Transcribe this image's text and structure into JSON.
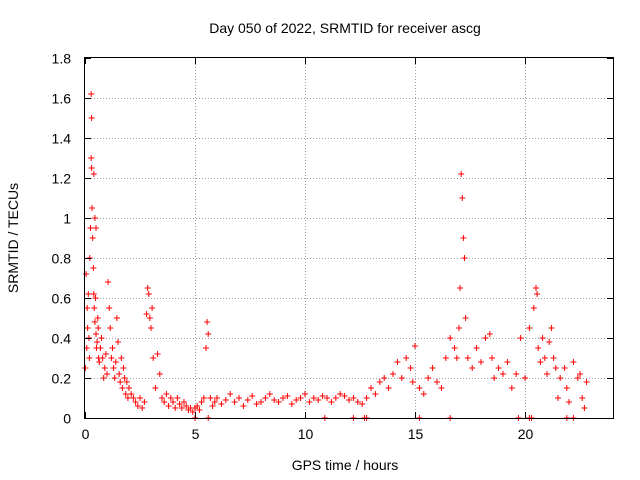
{
  "chart_data": {
    "type": "scatter",
    "title": "Day 050 of 2022, SRMTID for receiver ascg",
    "xlabel": "GPS time / hours",
    "ylabel": "SRMTID / TECUs",
    "xlim": [
      0,
      24
    ],
    "ylim": [
      0,
      1.8
    ],
    "xticks": [
      0,
      5,
      10,
      15,
      20
    ],
    "xtick_labels": [
      "0",
      "5",
      "10",
      "15",
      "20"
    ],
    "yticks": [
      0,
      0.2,
      0.4,
      0.6,
      0.8,
      1,
      1.2,
      1.4,
      1.6,
      1.8
    ],
    "ytick_labels": [
      "0",
      "0.2",
      "0.4",
      "0.6",
      "0.8",
      "1",
      "1.2",
      "1.4",
      "1.6",
      "1.8"
    ],
    "grid": true,
    "marker": "+",
    "color": "#ff0000",
    "series": [
      {
        "name": "SRMTID",
        "x": [
          0.02,
          0.05,
          0.08,
          0.1,
          0.12,
          0.15,
          0.18,
          0.2,
          0.22,
          0.25,
          0.28,
          0.3,
          0.32,
          0.35,
          0.38,
          0.4,
          0.42,
          0.45,
          0.48,
          0.5,
          0.52,
          0.55,
          0.58,
          0.6,
          0.62,
          0.65,
          0.7,
          0.75,
          0.8,
          0.85,
          0.9,
          0.95,
          1.0,
          1.05,
          1.1,
          1.15,
          1.2,
          1.25,
          1.3,
          1.35,
          1.4,
          1.45,
          1.5,
          1.55,
          1.6,
          1.65,
          1.7,
          1.75,
          1.8,
          1.85,
          1.9,
          1.95,
          2.0,
          2.1,
          2.2,
          2.3,
          2.4,
          2.5,
          2.6,
          2.7,
          2.8,
          2.85,
          2.9,
          2.95,
          3.0,
          3.05,
          3.1,
          3.2,
          3.3,
          3.4,
          3.5,
          3.6,
          3.7,
          3.8,
          3.9,
          4.0,
          4.1,
          4.2,
          4.3,
          4.4,
          4.5,
          4.6,
          4.7,
          4.8,
          4.9,
          5.0,
          5.1,
          5.2,
          5.3,
          5.4,
          5.5,
          5.55,
          5.6,
          5.7,
          5.8,
          5.9,
          6.0,
          6.2,
          6.4,
          6.6,
          6.8,
          7.0,
          7.2,
          7.4,
          7.6,
          7.8,
          8.0,
          8.2,
          8.4,
          8.6,
          8.8,
          9.0,
          9.2,
          9.4,
          9.6,
          9.8,
          10.0,
          10.2,
          10.4,
          10.6,
          10.8,
          11.0,
          11.2,
          11.4,
          11.6,
          11.8,
          12.0,
          12.2,
          12.4,
          12.6,
          12.8,
          13.0,
          13.2,
          13.4,
          13.6,
          13.8,
          14.0,
          14.2,
          14.4,
          14.6,
          14.8,
          14.9,
          15.0,
          15.2,
          15.4,
          15.6,
          15.8,
          16.0,
          16.2,
          16.4,
          16.6,
          16.8,
          16.9,
          17.0,
          17.05,
          17.1,
          17.15,
          17.2,
          17.25,
          17.3,
          17.4,
          17.6,
          17.8,
          18.0,
          18.2,
          18.4,
          18.5,
          18.6,
          18.8,
          19.0,
          19.2,
          19.4,
          19.6,
          19.8,
          20.0,
          20.2,
          20.4,
          20.5,
          20.55,
          20.6,
          20.7,
          20.8,
          20.9,
          21.0,
          21.1,
          21.2,
          21.3,
          21.4,
          21.5,
          21.6,
          21.8,
          21.9,
          22.0,
          22.2,
          22.4,
          22.5,
          22.6,
          22.7,
          22.8,
          0.28,
          0.3,
          0.4,
          0.45,
          0.5,
          5.0,
          5.6,
          10.9,
          12.2,
          12.7,
          12.8,
          15.2,
          16.6,
          19.7,
          20.2,
          20.3,
          21.9,
          22.2
        ],
        "y": [
          0.25,
          0.72,
          0.35,
          0.55,
          0.45,
          0.62,
          0.4,
          0.3,
          0.8,
          0.95,
          1.3,
          1.25,
          1.05,
          0.9,
          0.75,
          0.62,
          0.55,
          0.48,
          0.6,
          0.42,
          0.35,
          0.38,
          0.5,
          0.45,
          0.3,
          0.28,
          0.35,
          0.4,
          0.3,
          0.2,
          0.25,
          0.32,
          0.22,
          0.68,
          0.55,
          0.45,
          0.3,
          0.35,
          0.25,
          0.2,
          0.28,
          0.5,
          0.38,
          0.22,
          0.18,
          0.3,
          0.15,
          0.25,
          0.2,
          0.12,
          0.18,
          0.1,
          0.15,
          0.12,
          0.1,
          0.08,
          0.06,
          0.1,
          0.05,
          0.08,
          0.52,
          0.65,
          0.62,
          0.5,
          0.45,
          0.55,
          0.3,
          0.15,
          0.32,
          0.22,
          0.1,
          0.08,
          0.12,
          0.06,
          0.1,
          0.08,
          0.05,
          0.1,
          0.07,
          0.05,
          0.08,
          0.06,
          0.04,
          0.05,
          0.03,
          0.05,
          0.06,
          0.04,
          0.08,
          0.1,
          0.35,
          0.48,
          0.42,
          0.1,
          0.06,
          0.08,
          0.1,
          0.07,
          0.09,
          0.12,
          0.08,
          0.1,
          0.06,
          0.09,
          0.11,
          0.07,
          0.08,
          0.1,
          0.12,
          0.09,
          0.08,
          0.1,
          0.11,
          0.07,
          0.09,
          0.1,
          0.12,
          0.08,
          0.1,
          0.09,
          0.11,
          0.1,
          0.08,
          0.1,
          0.12,
          0.11,
          0.09,
          0.1,
          0.08,
          0.07,
          0.1,
          0.15,
          0.12,
          0.18,
          0.2,
          0.15,
          0.22,
          0.28,
          0.2,
          0.3,
          0.25,
          0.18,
          0.36,
          0.15,
          0.12,
          0.2,
          0.25,
          0.18,
          0.15,
          0.3,
          0.4,
          0.35,
          0.3,
          0.45,
          0.65,
          1.22,
          1.1,
          0.9,
          0.8,
          0.5,
          0.3,
          0.25,
          0.35,
          0.28,
          0.4,
          0.42,
          0.3,
          0.2,
          0.25,
          0.22,
          0.28,
          0.15,
          0.22,
          0.4,
          0.2,
          0.45,
          0.55,
          0.65,
          0.62,
          0.35,
          0.28,
          0.4,
          0.3,
          0.22,
          0.38,
          0.45,
          0.3,
          0.25,
          0.1,
          0.2,
          0.25,
          0.15,
          0.08,
          0.28,
          0.2,
          0.22,
          0.1,
          0.05,
          0.18,
          1.62,
          1.5,
          1.22,
          1.0,
          0.95,
          0.0,
          0.0,
          0.0,
          0.0,
          0.0,
          0.0,
          0.0,
          0.0,
          0.0,
          0.0,
          0.0,
          0.0,
          0.0
        ]
      }
    ]
  }
}
